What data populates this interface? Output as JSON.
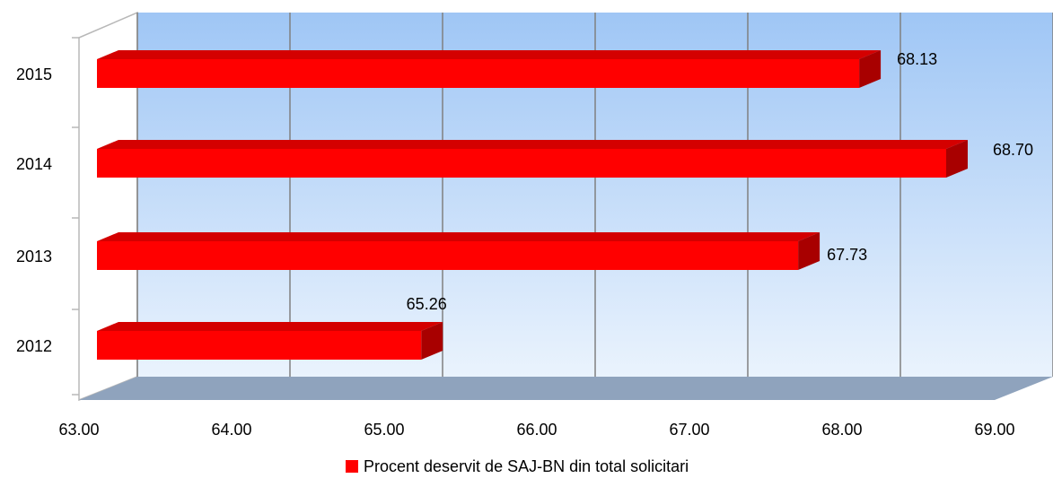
{
  "chart_data": {
    "type": "bar",
    "orientation": "horizontal",
    "three_d": true,
    "categories": [
      "2012",
      "2013",
      "2014",
      "2015"
    ],
    "series": [
      {
        "name": "Procent deservit de SAJ-BN din total solicitari",
        "values": [
          65.26,
          67.73,
          68.7,
          68.13
        ],
        "value_labels": [
          "65.26",
          "67.73",
          "68.70",
          "68.13"
        ],
        "color": "#ff0000"
      }
    ],
    "x_ticks": [
      "63.00",
      "64.00",
      "65.00",
      "66.00",
      "67.00",
      "68.00",
      "69.00"
    ],
    "xlim": [
      63,
      69
    ],
    "grid": true,
    "legend": "bottom",
    "colors": {
      "bar_front": "#ff0000",
      "bar_top": "#d40000",
      "bar_side": "#a80000",
      "wall_top": "#9fc6f5",
      "wall_bottom": "#eaf3fd",
      "floor": "#8fa3bd",
      "grid": "#808080"
    }
  }
}
